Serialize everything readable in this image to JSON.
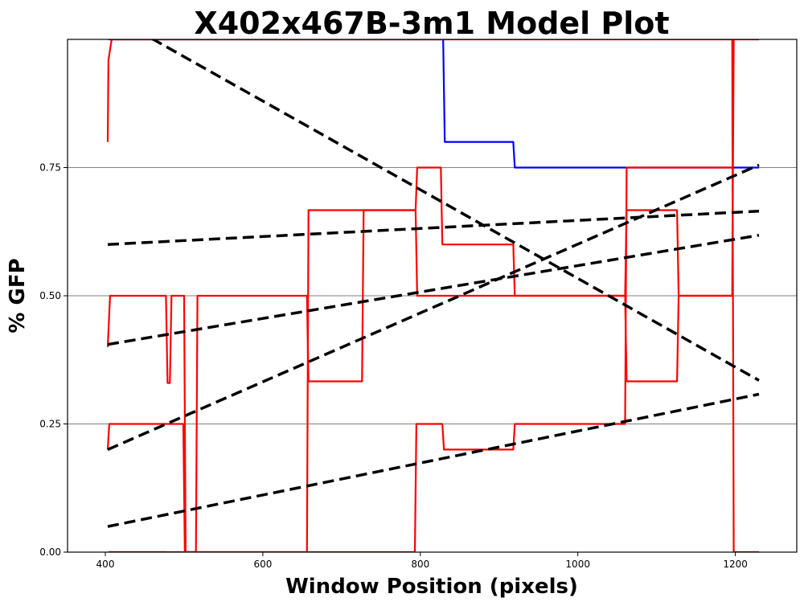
{
  "chart_data": {
    "type": "line",
    "title": "X402x467B-3m1 Model Plot",
    "xlabel": "Window Position (pixels)",
    "ylabel": "% GFP",
    "xlim": [
      352,
      1278
    ],
    "ylim": [
      0,
      1
    ],
    "x_ticks": [
      400,
      600,
      800,
      1000,
      1200
    ],
    "y_ticks": [
      0.0,
      0.25,
      0.5,
      0.75
    ],
    "y_tick_labels": [
      "0.00",
      "0.25",
      "0.50",
      "0.75"
    ],
    "grid": "horizontal",
    "grid_color": "#808080",
    "colors": {
      "step_red": "#ff0000",
      "step_blue": "#0000ff",
      "model_dashed": "#000000"
    },
    "series": [
      {
        "color": "#0000ff",
        "style": "solid",
        "x": [
          404,
          473,
          474,
          829,
          831,
          918,
          920,
          1230
        ],
        "y": [
          1.0,
          1.0,
          1.0,
          1.0,
          0.8,
          0.8,
          0.75,
          0.75
        ]
      },
      {
        "color": "#0000ff",
        "style": "solid",
        "x": [
          404,
          478
        ],
        "y": [
          0.0,
          0.0
        ]
      },
      {
        "color": "#ff0000",
        "style": "solid",
        "x": [
          403,
          404,
          408,
          656,
          658,
          728,
          729,
          1196,
          1198,
          1230
        ],
        "y": [
          0.8,
          0.96,
          1.0,
          1.0,
          1.0,
          1.0,
          1.0,
          1.0,
          0.0,
          0.0
        ]
      },
      {
        "color": "#ff0000",
        "style": "solid",
        "x": [
          403,
          406,
          477,
          479,
          482,
          484,
          486,
          500,
          502,
          503,
          515,
          517,
          656,
          658,
          726,
          728,
          794,
          796,
          1060,
          1062,
          1126,
          1128,
          1196,
          1198,
          1230
        ],
        "y": [
          0.4,
          0.5,
          0.5,
          0.33,
          0.33,
          0.5,
          0.5,
          0.5,
          0.0,
          0.0,
          0.0,
          0.5,
          0.5,
          0.333,
          0.333,
          0.667,
          0.667,
          0.5,
          0.5,
          0.333,
          0.333,
          0.5,
          0.5,
          1.0,
          1.0
        ]
      },
      {
        "color": "#ff0000",
        "style": "solid",
        "x": [
          403,
          405,
          476,
          478,
          499,
          501,
          516,
          518,
          656,
          658,
          726,
          728,
          794,
          796,
          826,
          828,
          918,
          920,
          1060,
          1062,
          1126,
          1128,
          1196
        ],
        "y": [
          0.2,
          0.25,
          0.25,
          0.25,
          0.25,
          0.0,
          0.0,
          0.0,
          0.0,
          0.667,
          0.667,
          0.667,
          0.667,
          0.75,
          0.75,
          0.6,
          0.6,
          0.5,
          0.5,
          0.667,
          0.667,
          0.5,
          0.5
        ]
      },
      {
        "color": "#ff0000",
        "style": "solid",
        "x": [
          404,
          793,
          795,
          828,
          830,
          918,
          920,
          1060,
          1062,
          1196
        ],
        "y": [
          0.0,
          0.0,
          0.25,
          0.25,
          0.2,
          0.2,
          0.25,
          0.25,
          0.75,
          0.75
        ]
      },
      {
        "color": "#000000",
        "style": "dashed",
        "x": [
          403,
          1230
        ],
        "y": [
          1.05,
          0.335
        ]
      },
      {
        "color": "#000000",
        "style": "dashed",
        "x": [
          403,
          1230
        ],
        "y": [
          0.6,
          0.665
        ]
      },
      {
        "color": "#000000",
        "style": "dashed",
        "x": [
          403,
          1230
        ],
        "y": [
          0.405,
          0.618
        ]
      },
      {
        "color": "#000000",
        "style": "dashed",
        "x": [
          403,
          1230
        ],
        "y": [
          0.2,
          0.755
        ]
      },
      {
        "color": "#000000",
        "style": "dashed",
        "x": [
          403,
          1230
        ],
        "y": [
          0.05,
          0.308
        ]
      }
    ]
  }
}
